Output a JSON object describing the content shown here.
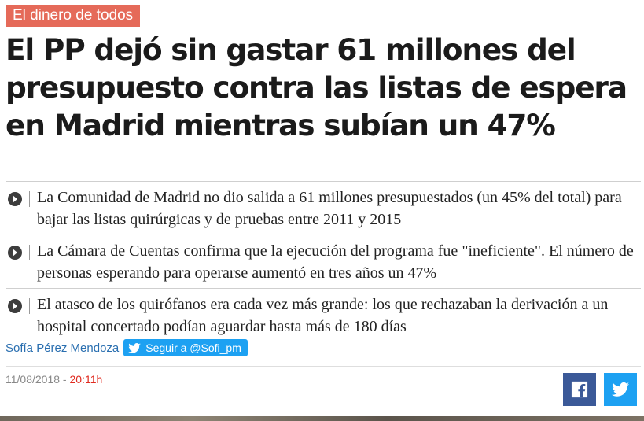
{
  "section_tag": "El dinero de todos",
  "headline": "El PP dejó sin gastar 61 millones del presupuesto contra las listas de espera en Madrid mientras subían un 47%",
  "bullets": [
    "La Comunidad de Madrid no dio salida a 61 millones presupuestados (un 45% del total) para bajar las listas quirúrgicas y de pruebas entre 2011 y 2015",
    "La Cámara de Cuentas confirma que la ejecución del programa fue \"ineficiente\". El número de personas esperando para operarse aumentó en tres años un 47%",
    "El atasco de los quirófanos era cada vez más grande: los que rechazaban la derivación a un hospital concertado podían aguardar hasta más de 180 días"
  ],
  "author": {
    "name": "Sofía Pérez Mendoza",
    "follow_label": "Seguir a @Sofi_pm"
  },
  "meta": {
    "date": "11/08/2018",
    "separator": " - ",
    "time": "20:11h"
  },
  "share": {
    "facebook_icon": "facebook-icon",
    "twitter_icon": "twitter-icon"
  },
  "colors": {
    "tag_bg": "#e56a59",
    "author_link": "#2a6fb0",
    "time_red": "#e02b20",
    "facebook": "#3b5998",
    "twitter": "#1da1f2"
  }
}
